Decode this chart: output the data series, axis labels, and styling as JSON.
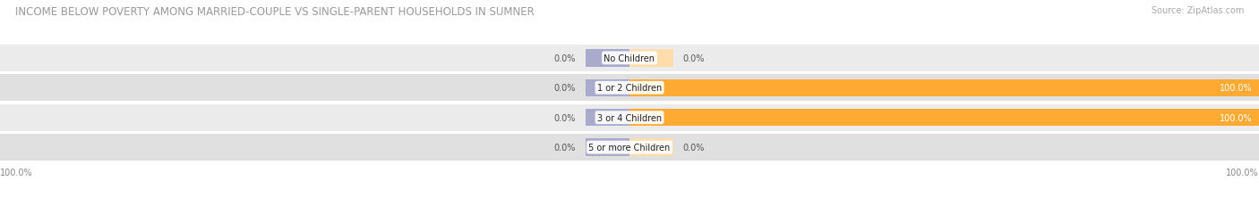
{
  "title": "INCOME BELOW POVERTY AMONG MARRIED-COUPLE VS SINGLE-PARENT HOUSEHOLDS IN SUMNER",
  "source": "Source: ZipAtlas.com",
  "categories": [
    "No Children",
    "1 or 2 Children",
    "3 or 4 Children",
    "5 or more Children"
  ],
  "married_values": [
    0.0,
    0.0,
    0.0,
    0.0
  ],
  "single_values": [
    0.0,
    100.0,
    100.0,
    0.0
  ],
  "married_color": "#8888bb",
  "single_color": "#ffaa33",
  "single_color_light": "#ffddaa",
  "married_stub_color": "#aaaacc",
  "row_colors": [
    "#ebebeb",
    "#e0e0e0",
    "#ebebeb",
    "#e0e0e0"
  ],
  "title_fontsize": 8.5,
  "source_fontsize": 7,
  "label_fontsize": 7,
  "category_fontsize": 7,
  "legend_fontsize": 7.5,
  "bar_height": 0.58,
  "fig_bg": "#ffffff"
}
